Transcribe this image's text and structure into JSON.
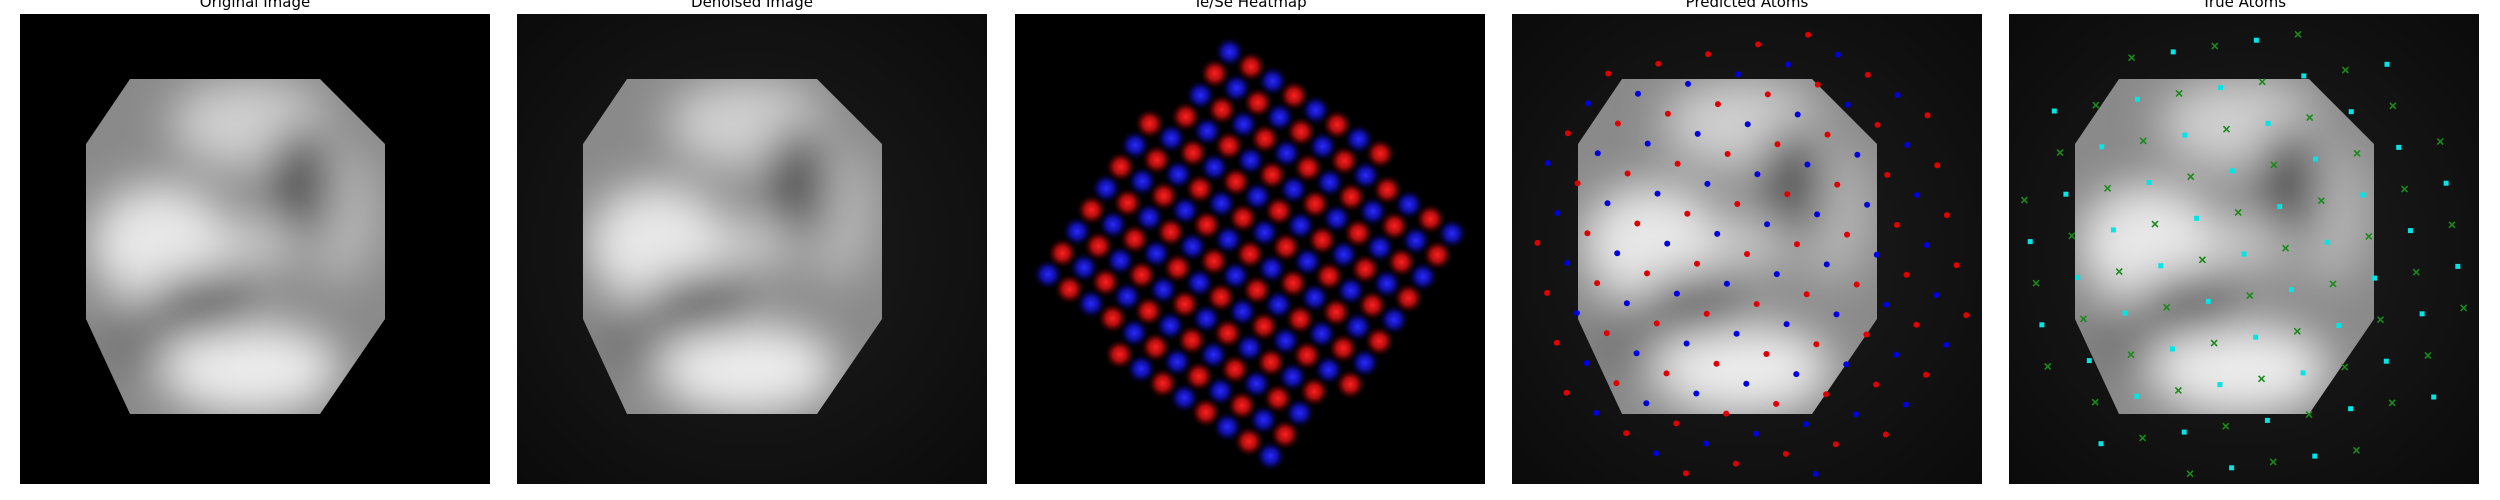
{
  "panels": [
    {
      "title": "Original Image"
    },
    {
      "title": "Denoised Image"
    },
    {
      "title": "Te/Se Heatmap"
    },
    {
      "title": "Predicted Atoms"
    },
    {
      "title": "True Atoms"
    }
  ],
  "colors": {
    "te": "#e01010",
    "se": "#1a1aff",
    "predicted_red": "#e00000",
    "predicted_blue": "#0000e0",
    "true_cyan": "#00e5e5",
    "true_green": "#1a8a1a"
  }
}
